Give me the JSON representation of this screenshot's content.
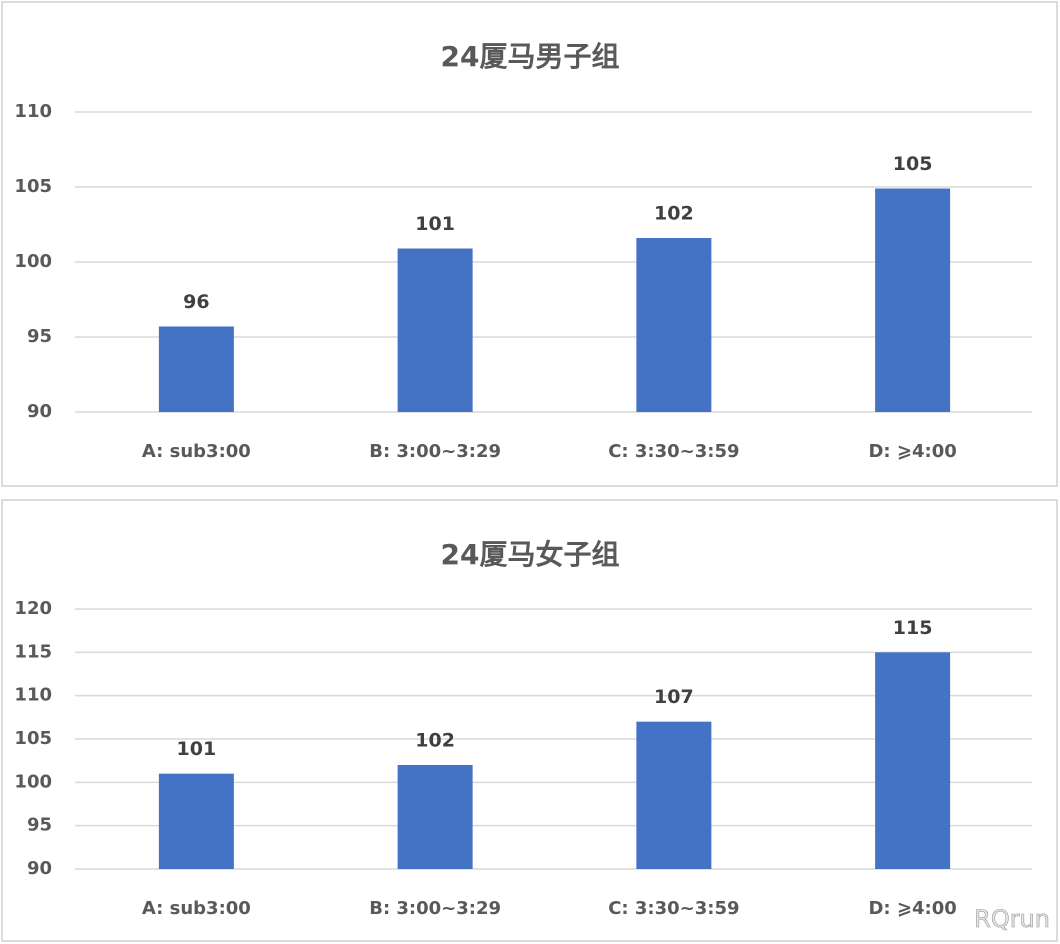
{
  "chart_data": [
    {
      "type": "bar",
      "title": "24厦马男子组",
      "categories": [
        "A: sub3:00",
        "B: 3:00~3:29",
        "C: 3:30~3:59",
        "D: ⩾4:00"
      ],
      "values": [
        95.7,
        100.9,
        101.6,
        104.9
      ],
      "value_labels": [
        "96",
        "101",
        "102",
        "105"
      ],
      "color": "#4472c4",
      "ylim": [
        90,
        110
      ],
      "yticks": [
        90,
        95,
        100,
        105,
        110
      ],
      "grid": true
    },
    {
      "type": "bar",
      "title": "24厦马女子组",
      "categories": [
        "A: sub3:00",
        "B: 3:00~3:29",
        "C: 3:30~3:59",
        "D: ⩾4:00"
      ],
      "values": [
        101,
        102,
        107,
        115
      ],
      "color": "#4472c4",
      "ylim": [
        90,
        120
      ],
      "yticks": [
        90,
        95,
        100,
        105,
        110,
        115,
        120
      ],
      "grid": true
    }
  ],
  "watermark": "RQrun"
}
